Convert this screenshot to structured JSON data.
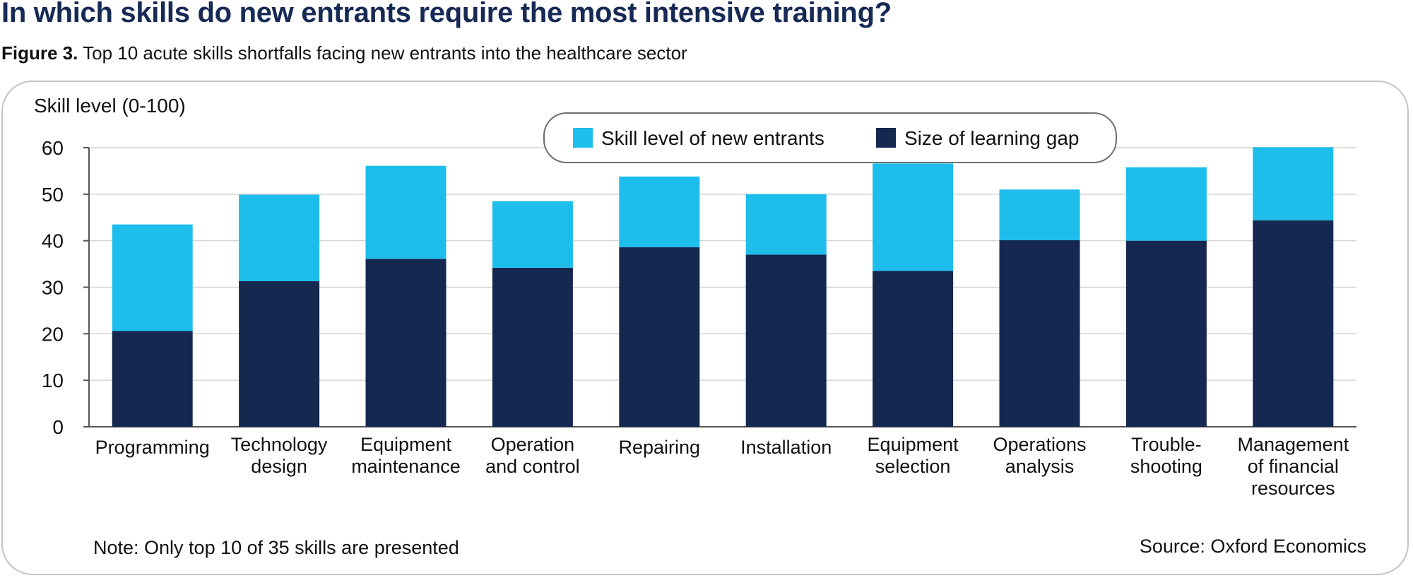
{
  "header": {
    "headline": "In which skills do new entrants require the most intensive training?",
    "figure_label": "Figure 3.",
    "figure_caption": "Top 10 acute skills shortfalls facing new entrants into the healthcare sector"
  },
  "footer": {
    "note": "Note: Only top 10 of 35 skills are presented",
    "source": "Source: Oxford Economics"
  },
  "colors": {
    "entrant_skill": "#1dbdec",
    "learning_gap": "#15284f",
    "grid": "#d4d4d4",
    "axis": "#555555"
  },
  "chart_data": {
    "type": "bar",
    "stacked": true,
    "ylabel": "Skill level (0-100)",
    "ylim": [
      0,
      60
    ],
    "yticks": [
      0,
      10,
      20,
      30,
      40,
      50,
      60
    ],
    "grid": true,
    "legend_position": "top-center",
    "categories": [
      [
        "Programming"
      ],
      [
        "Technology",
        "design"
      ],
      [
        "Equipment",
        "maintenance"
      ],
      [
        "Operation",
        "and control"
      ],
      [
        "Repairing"
      ],
      [
        "Installation"
      ],
      [
        "Equipment",
        "selection"
      ],
      [
        "Operations",
        "analysis"
      ],
      [
        "Trouble-",
        "shooting"
      ],
      [
        "Management",
        "of financial",
        "resources"
      ]
    ],
    "series": [
      {
        "name": "Size of learning gap",
        "color_key": "learning_gap",
        "values": [
          20.6,
          31.3,
          36.1,
          34.2,
          38.6,
          37.0,
          33.5,
          40.1,
          40.0,
          44.4
        ]
      },
      {
        "name": "Skill level of new entrants",
        "color_key": "entrant_skill",
        "values": [
          22.9,
          18.6,
          20.0,
          14.3,
          15.2,
          13.0,
          23.1,
          10.9,
          15.8,
          15.7
        ]
      }
    ]
  }
}
